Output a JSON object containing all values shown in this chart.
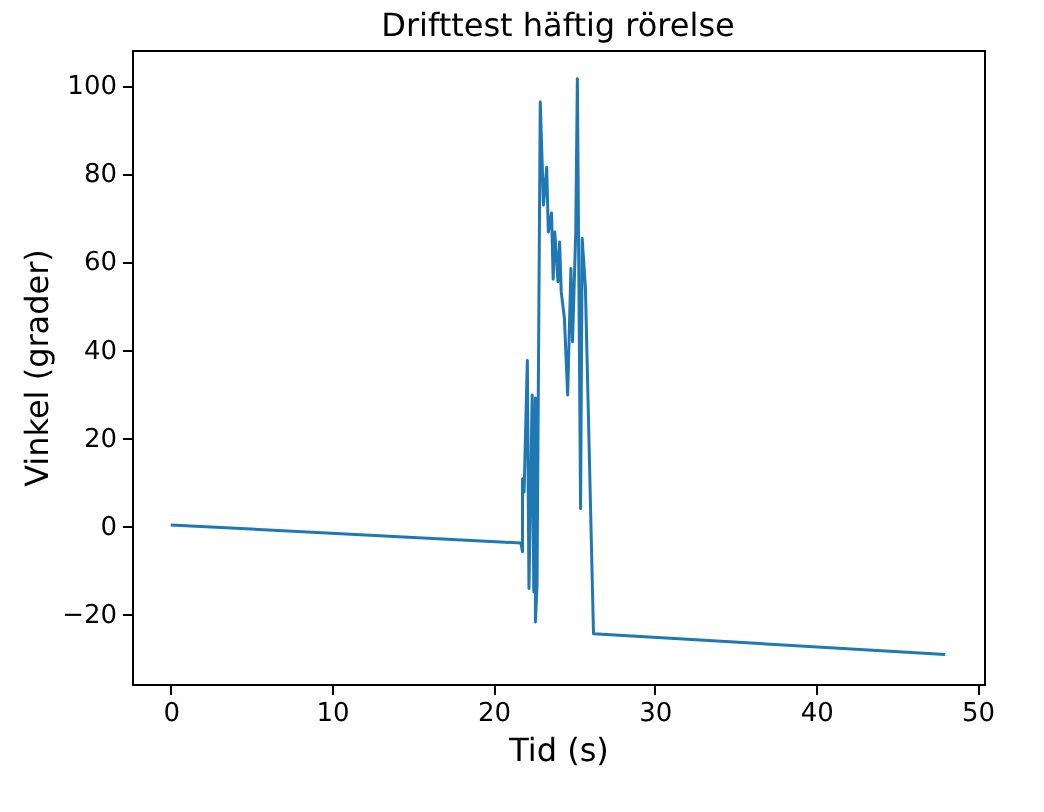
{
  "chart_data": {
    "type": "line",
    "title": "Drifttest häftig rörelse",
    "xlabel": "Tid (s)",
    "ylabel": "Vinkel (grader)",
    "xlim": [
      -2.4,
      50.4
    ],
    "ylim": [
      -35.9,
      108
    ],
    "xticks": [
      0,
      10,
      20,
      30,
      40,
      50
    ],
    "yticks": [
      -20,
      0,
      20,
      40,
      60,
      80,
      100
    ],
    "grid": false,
    "series": [
      {
        "color": "#1f77b4",
        "x": [
          0,
          21.7,
          21.8,
          21.8,
          21.9,
          22.1,
          22.2,
          22.4,
          22.5,
          22.6,
          22.6,
          22.7,
          22.9,
          23.1,
          23.3,
          23.4,
          23.6,
          23.7,
          23.8,
          24.0,
          24.1,
          24.2,
          24.4,
          24.5,
          24.6,
          24.8,
          24.9,
          25.1,
          25.2,
          25.4,
          25.5,
          25.7,
          26.2,
          48.0
        ],
        "values": [
          0.2,
          -3.9,
          -5.9,
          10.7,
          7.7,
          37.5,
          -14.2,
          29.7,
          -15,
          29,
          -21.8,
          -13.5,
          96.2,
          72.8,
          81.4,
          66.7,
          71,
          56,
          66.7,
          55.4,
          64.4,
          53.1,
          47,
          38,
          29.7,
          58.4,
          41.8,
          66.7,
          101.5,
          3.9,
          65.2,
          53.9,
          -24.5,
          -29.2
        ]
      }
    ]
  }
}
